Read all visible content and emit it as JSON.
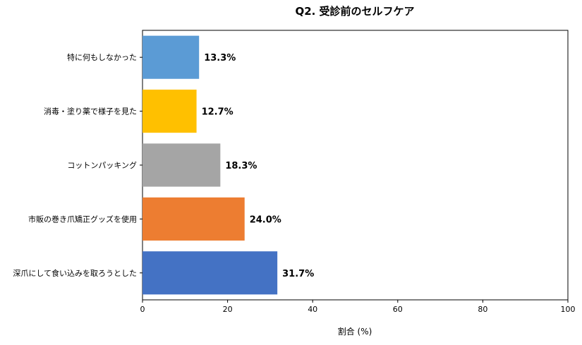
{
  "chart_data": {
    "type": "bar",
    "orientation": "horizontal",
    "title": "Q2. 受診前のセルフケア",
    "xlabel": "割合 (%)",
    "ylabel": "",
    "xlim": [
      0,
      100
    ],
    "xticks": [
      "0",
      "20",
      "40",
      "60",
      "80",
      "100"
    ],
    "categories": [
      "特に何もしなかった",
      "消毒・塗り薬で様子を見た",
      "コットンパッキング",
      "市販の巻き爪矯正グッズを使用",
      "深爪にして食い込みを取ろうとした"
    ],
    "values": [
      13.3,
      12.7,
      18.3,
      24.0,
      31.7
    ],
    "value_labels": [
      "13.3%",
      "12.7%",
      "18.3%",
      "24.0%",
      "31.7%"
    ],
    "colors": [
      "#5b9bd5",
      "#ffc000",
      "#a5a5a5",
      "#ed7d31",
      "#4472c4"
    ],
    "grid": false,
    "legend": "none"
  }
}
